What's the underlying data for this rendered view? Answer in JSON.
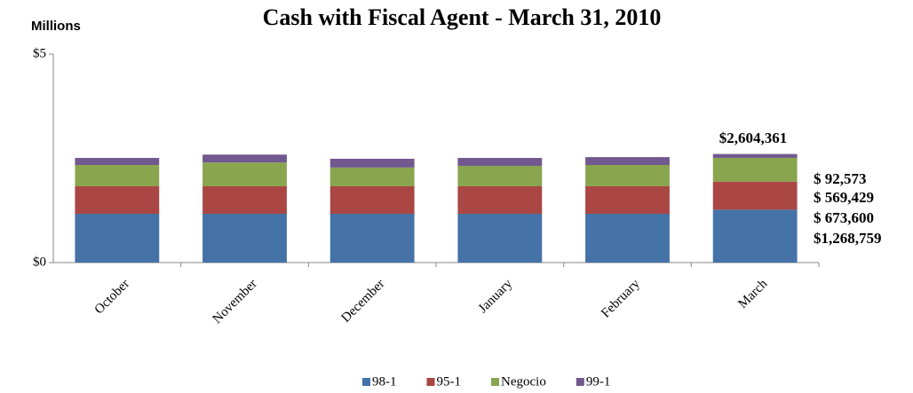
{
  "chart_data": {
    "type": "stacked_bar",
    "title": "Cash with Fiscal Agent - March 31, 2010",
    "ylabel": "Millions",
    "categories": [
      "October",
      "November",
      "December",
      "January",
      "February",
      "March"
    ],
    "series": [
      {
        "name": "98-1",
        "color": "#4572a7",
        "values": [
          1.17,
          1.17,
          1.17,
          1.17,
          1.17,
          1.268759
        ],
        "value_labels": [
          null,
          null,
          null,
          null,
          null,
          "$1,268,759"
        ]
      },
      {
        "name": "95-1",
        "color": "#aa4643",
        "values": [
          0.66,
          0.66,
          0.66,
          0.66,
          0.66,
          0.6736
        ],
        "value_labels": [
          null,
          null,
          null,
          null,
          null,
          "$ 673,600"
        ]
      },
      {
        "name": "Negocio",
        "color": "#89a54e",
        "values": [
          0.51,
          0.57,
          0.45,
          0.49,
          0.51,
          0.569429
        ],
        "value_labels": [
          null,
          null,
          null,
          null,
          null,
          "$ 569,429"
        ]
      },
      {
        "name": "99-1",
        "color": "#71588f",
        "values": [
          0.17,
          0.19,
          0.21,
          0.19,
          0.19,
          0.092573
        ],
        "value_labels": [
          null,
          null,
          null,
          null,
          null,
          "$ 92,573"
        ]
      }
    ],
    "annotations": [
      {
        "text": "$2,604,361"
      }
    ],
    "ylim": [
      0,
      5
    ],
    "yticks": [
      {
        "value": 0,
        "label": "$0"
      },
      {
        "value": 5,
        "label": "$5"
      }
    ],
    "legend": "bottom"
  }
}
